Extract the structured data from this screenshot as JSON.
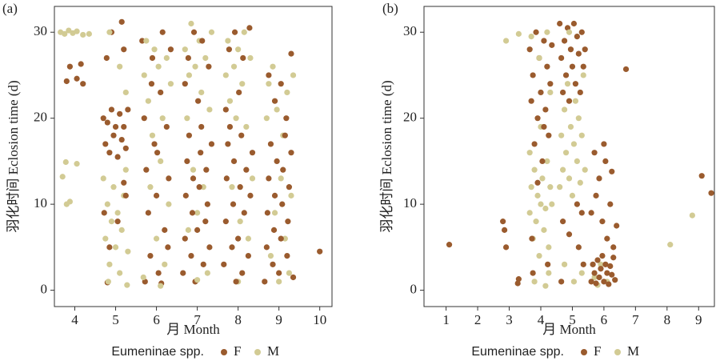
{
  "chart_data": [
    {
      "type": "scatter",
      "title": "(a)",
      "x_label": "月 Month",
      "y_label": "羽化时间 Eclosion time (d)",
      "legend_title": "Eumeninae spp.",
      "xlim": [
        3.5,
        10.3
      ],
      "ylim": [
        -1.9,
        33
      ],
      "xticks": [
        4,
        5,
        6,
        7,
        8,
        9,
        10
      ],
      "yticks": [
        0,
        10,
        20,
        30
      ],
      "series": [
        {
          "name": "F",
          "color": "#9a5b2e",
          "x": [
            3.8,
            3.88,
            4.05,
            4.15,
            4.2,
            4.7,
            4.75,
            4.8,
            4.85,
            4.9,
            4.95,
            5.0,
            5.05,
            5.1,
            5.15,
            5.2,
            5.25,
            5.3,
            4.78,
            4.9,
            5.15,
            5.2,
            4.72,
            4.85,
            5.05,
            5.2,
            4.8,
            5.25,
            5.65,
            5.7,
            5.75,
            5.8,
            5.85,
            5.9,
            5.95,
            6.0,
            6.05,
            6.1,
            6.15,
            6.2,
            6.25,
            6.3,
            6.35,
            5.72,
            6.12,
            5.88,
            6.28,
            6.02,
            6.65,
            6.7,
            6.72,
            6.75,
            6.8,
            6.85,
            6.88,
            6.9,
            6.95,
            7.0,
            7.05,
            7.08,
            7.1,
            7.15,
            7.2,
            7.22,
            7.25,
            7.3,
            7.35,
            6.78,
            6.92,
            7.12,
            7.28,
            7.02,
            6.7,
            7.65,
            7.7,
            7.72,
            7.75,
            7.8,
            7.85,
            7.88,
            7.9,
            7.95,
            8.0,
            8.05,
            8.08,
            8.1,
            8.15,
            8.2,
            8.25,
            8.3,
            8.35,
            7.78,
            7.92,
            8.12,
            8.28,
            8.02,
            7.7,
            8.65,
            8.7,
            8.72,
            8.75,
            8.8,
            8.85,
            8.88,
            8.9,
            8.95,
            9.0,
            9.05,
            9.08,
            9.1,
            9.15,
            9.2,
            9.22,
            9.25,
            9.3,
            9.35,
            8.75,
            9.05,
            9.3,
            8.9,
            9.18,
            10.0
          ],
          "values": [
            24.3,
            26,
            24.6,
            26.3,
            24,
            20,
            17,
            19.5,
            16,
            21,
            18,
            19,
            15.5,
            20.5,
            17.5,
            19,
            16.5,
            21,
            27,
            30,
            31.2,
            28,
            9,
            5,
            8,
            12.5,
            0.9,
            11,
            29,
            20,
            14,
            9,
            4,
            27,
            17,
            11,
            2,
            23,
            30,
            7,
            19,
            13,
            28,
            1,
            0.8,
            24,
            5,
            16,
            2,
            6,
            11,
            15,
            18,
            4,
            9,
            13,
            1,
            7,
            12,
            16,
            19,
            3,
            8,
            14,
            10,
            5,
            17,
            27,
            30,
            29,
            26,
            22,
            24,
            3,
            8,
            13,
            17,
            19,
            5,
            10,
            15,
            1,
            6,
            12,
            18,
            2,
            9,
            14,
            4,
            11,
            16,
            28,
            30,
            27,
            30.5,
            23,
            21,
            1,
            5,
            9,
            13,
            17,
            3,
            7,
            11,
            15,
            2,
            6,
            10,
            14,
            18,
            4,
            8,
            12,
            16,
            1.5,
            25,
            24,
            27.5,
            22,
            20,
            4.5
          ]
        },
        {
          "name": "M",
          "color": "#d2cb94",
          "x": [
            3.65,
            3.75,
            3.85,
            3.95,
            4.05,
            4.2,
            3.7,
            3.78,
            3.8,
            3.88,
            4.05,
            4.35,
            4.7,
            4.75,
            4.8,
            4.85,
            4.9,
            4.95,
            5.0,
            5.05,
            5.1,
            5.15,
            5.2,
            5.25,
            5.3,
            4.85,
            5.1,
            5.25,
            4.82,
            5.28,
            5.7,
            5.75,
            5.8,
            5.85,
            5.9,
            5.95,
            6.0,
            6.05,
            6.1,
            6.15,
            6.2,
            6.25,
            6.3,
            6.35,
            5.68,
            6.1,
            6.7,
            6.75,
            6.8,
            6.85,
            6.9,
            6.95,
            7.0,
            7.05,
            7.1,
            7.15,
            7.2,
            7.25,
            7.3,
            7.35,
            7.0,
            6.78,
            7.7,
            7.75,
            7.8,
            7.85,
            7.9,
            7.95,
            8.0,
            8.05,
            8.1,
            8.15,
            8.2,
            8.25,
            8.3,
            8.35,
            8.0,
            8.7,
            8.75,
            8.8,
            8.85,
            8.9,
            8.95,
            9.0,
            9.05,
            9.1,
            9.15,
            9.2,
            9.25,
            9.3,
            9.35
          ],
          "values": [
            30,
            29.8,
            30.2,
            29.9,
            30.1,
            29.7,
            13.2,
            14.9,
            10,
            10.3,
            14.7,
            29.8,
            13,
            6,
            10,
            3,
            8,
            12,
            5,
            9,
            2,
            7,
            11,
            14,
            4.5,
            30,
            26,
            23,
            1,
            0.6,
            25,
            29,
            22,
            12,
            18,
            28,
            6,
            26,
            15,
            20,
            3,
            27,
            10,
            24,
            1.5,
            0.5,
            28,
            20,
            25,
            31,
            14,
            26,
            9,
            29,
            23,
            12,
            27,
            2,
            21,
            30,
            1.2,
            7,
            25,
            29,
            22,
            12,
            26,
            20,
            28,
            8,
            24,
            30,
            19,
            6,
            27,
            13,
            1,
            20,
            24,
            4,
            26,
            9,
            21,
            1,
            13,
            18,
            6,
            23,
            2,
            11,
            25
          ]
        }
      ]
    },
    {
      "type": "scatter",
      "title": "(b)",
      "x_label": "月 Month",
      "y_label": "羽化时间 Eclosion time (d)",
      "legend_title": "Eumeninae spp.",
      "xlim": [
        0.3,
        9.5
      ],
      "ylim": [
        -1.9,
        33
      ],
      "xticks": [
        1,
        2,
        3,
        4,
        5,
        6,
        7,
        8,
        9
      ],
      "yticks": [
        0,
        10,
        20,
        30
      ],
      "series": [
        {
          "name": "F",
          "color": "#9a5b2e",
          "x": [
            1.1,
            2.8,
            2.85,
            2.9,
            3.3,
            3.27,
            3.65,
            3.7,
            3.75,
            3.8,
            3.85,
            3.9,
            3.95,
            4.0,
            4.05,
            4.1,
            4.15,
            4.2,
            4.25,
            4.3,
            4.35,
            3.72,
            4.22,
            3.9,
            4.1,
            3.75,
            4.6,
            4.65,
            4.7,
            4.75,
            4.8,
            4.85,
            4.9,
            4.95,
            5.0,
            5.05,
            5.1,
            5.15,
            5.2,
            5.25,
            5.3,
            5.35,
            5.4,
            4.7,
            5.3,
            5.2,
            4.9,
            5.35,
            4.65,
            5.15,
            5.6,
            5.65,
            5.7,
            5.75,
            5.8,
            5.85,
            5.9,
            5.95,
            6.0,
            6.05,
            6.1,
            6.15,
            6.2,
            6.25,
            6.3,
            6.35,
            5.7,
            5.75,
            5.85,
            5.95,
            6.05,
            6.1,
            6.2,
            6.25,
            6.3,
            6.4,
            6.0,
            5.6,
            6.7,
            9.1,
            9.4
          ],
          "values": [
            5.3,
            8,
            7,
            5,
            1.3,
            0.8,
            28,
            22,
            25,
            17,
            30,
            20,
            27,
            23,
            15,
            29,
            21,
            26,
            18,
            24,
            28.5,
            6,
            3,
            12.5,
            19,
            2,
            31,
            27,
            23,
            29,
            25,
            30.5,
            22,
            28,
            26,
            31,
            24,
            29.5,
            27.5,
            23,
            30,
            26,
            28,
            8,
            9,
            5,
            6.5,
            3,
            1,
            10,
            1,
            3,
            2,
            0.8,
            3.5,
            1.5,
            2.5,
            4,
            1,
            3,
            2,
            0.7,
            2.8,
            1.8,
            3.8,
            1.2,
            16,
            11,
            13,
            8,
            15,
            6,
            10,
            13.8,
            5,
            7.5,
            17,
            9,
            25.7,
            13.3,
            11.3
          ]
        },
        {
          "name": "M",
          "color": "#d2cb94",
          "x": [
            2.9,
            3.3,
            3.65,
            3.7,
            3.75,
            3.8,
            3.85,
            3.9,
            3.95,
            4.0,
            4.05,
            4.1,
            4.15,
            4.2,
            4.25,
            4.3,
            4.35,
            3.7,
            3.95,
            4.2,
            4.0,
            4.3,
            3.8,
            4.15,
            3.65,
            4.25,
            4.6,
            4.65,
            4.7,
            4.75,
            4.8,
            4.85,
            4.9,
            4.95,
            5.0,
            5.05,
            5.1,
            5.15,
            5.2,
            5.25,
            5.3,
            5.35,
            5.4,
            4.75,
            5.05,
            5.3,
            4.9,
            5.7,
            5.9,
            6.1,
            5.8,
            8.1,
            8.8
          ],
          "values": [
            29,
            29.8,
            9,
            12,
            6,
            14,
            8,
            11,
            4,
            10,
            13,
            7,
            9.5,
            15,
            5,
            12,
            10,
            29.5,
            27,
            30,
            19,
            23,
            1,
            0.5,
            16,
            2,
            12,
            18,
            14,
            21,
            16,
            24,
            13,
            19,
            11,
            17,
            22,
            15,
            20,
            12.5,
            18,
            25,
            14,
            3,
            1,
            2,
            30,
            1.5,
            3,
            1,
            0.6,
            5.3,
            8.7
          ]
        }
      ]
    }
  ]
}
